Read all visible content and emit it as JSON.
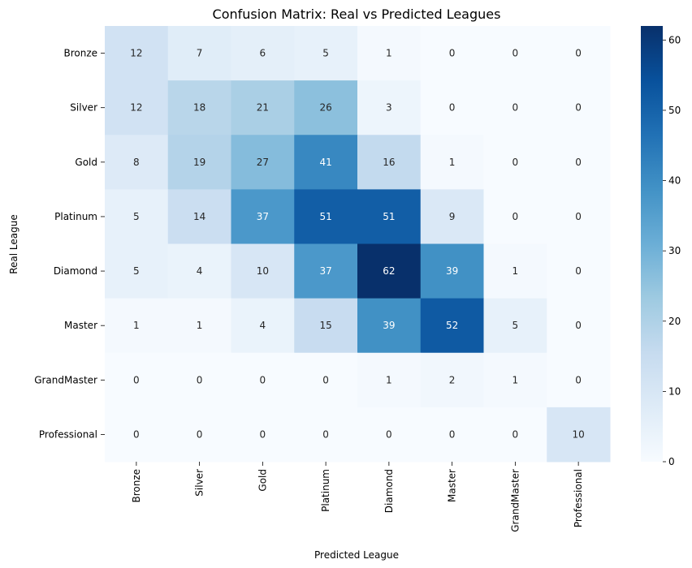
{
  "chart_data": {
    "type": "heatmap",
    "title": "Confusion Matrix: Real vs Predicted Leagues",
    "xlabel": "Predicted League",
    "ylabel": "Real League",
    "x_categories": [
      "Bronze",
      "Silver",
      "Gold",
      "Platinum",
      "Diamond",
      "Master",
      "GrandMaster",
      "Professional"
    ],
    "y_categories": [
      "Bronze",
      "Silver",
      "Gold",
      "Platinum",
      "Diamond",
      "Master",
      "GrandMaster",
      "Professional"
    ],
    "values": [
      [
        12,
        7,
        6,
        5,
        1,
        0,
        0,
        0
      ],
      [
        12,
        18,
        21,
        26,
        3,
        0,
        0,
        0
      ],
      [
        8,
        19,
        27,
        41,
        16,
        1,
        0,
        0
      ],
      [
        5,
        14,
        37,
        51,
        51,
        9,
        0,
        0
      ],
      [
        5,
        4,
        10,
        37,
        62,
        39,
        1,
        0
      ],
      [
        1,
        1,
        4,
        15,
        39,
        52,
        5,
        0
      ],
      [
        0,
        0,
        0,
        0,
        1,
        2,
        1,
        0
      ],
      [
        0,
        0,
        0,
        0,
        0,
        0,
        0,
        10
      ]
    ],
    "colormap": "Blues",
    "color_range": [
      0,
      62
    ],
    "colorbar_ticks": [
      0,
      10,
      20,
      30,
      40,
      50,
      60
    ],
    "colorbar_tick_labels": [
      "0",
      "10",
      "20",
      "30",
      "40",
      "50",
      "60"
    ],
    "grid": false,
    "legend": "colorbar-right"
  }
}
